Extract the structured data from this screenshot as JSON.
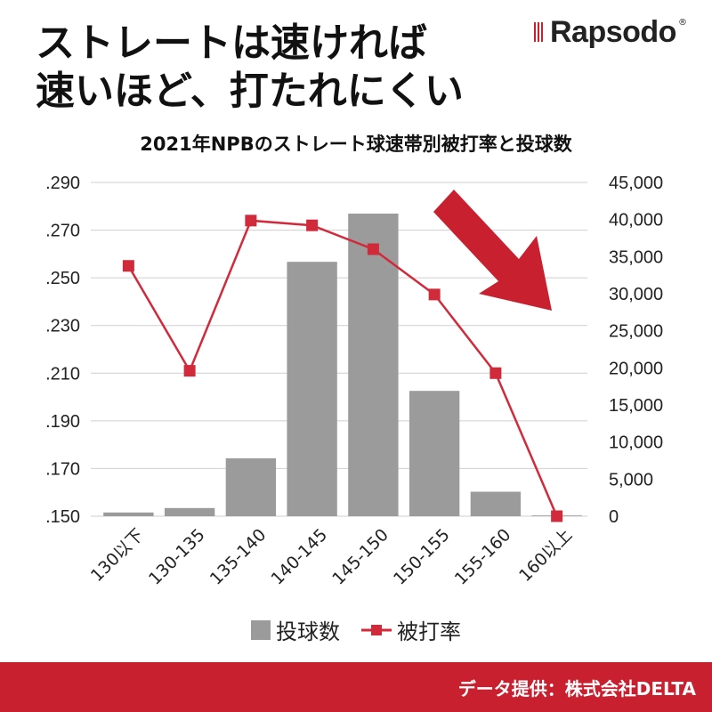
{
  "headline": {
    "line1": "ストレートは速ければ",
    "line2": "速いほど、打たれにくい"
  },
  "logo": {
    "text": "Rapsodo",
    "registered": "®"
  },
  "footer": {
    "credit": "データ提供：株式会社DELTA"
  },
  "colors": {
    "bar": "#9b9b9b",
    "line": "#d12a3a",
    "arrow": "#c8202f",
    "footer": "#c8202f",
    "grid": "#cfcfcf"
  },
  "chart_data": {
    "type": "bar",
    "title": "2021年NPBのストレート球速帯別被打率と投球数",
    "categories": [
      "130以下",
      "130-135",
      "135-140",
      "140-145",
      "145-150",
      "150-155",
      "155-160",
      "160以上"
    ],
    "series": [
      {
        "name": "投球数",
        "type": "bar",
        "axis": "right",
        "values": [
          500,
          1100,
          7800,
          34300,
          40800,
          16900,
          3300,
          100
        ]
      },
      {
        "name": "被打率",
        "type": "line",
        "axis": "left",
        "values": [
          0.255,
          0.211,
          0.274,
          0.272,
          0.262,
          0.243,
          0.21,
          0.15
        ]
      }
    ],
    "y_left": {
      "ylim": [
        0.15,
        0.29
      ],
      "ticks": [
        ".290",
        ".270",
        ".250",
        ".230",
        ".210",
        ".190",
        ".170",
        ".150"
      ],
      "tick_values": [
        0.29,
        0.27,
        0.25,
        0.23,
        0.21,
        0.19,
        0.17,
        0.15
      ]
    },
    "y_right": {
      "ylim": [
        0,
        45000
      ],
      "ticks": [
        "45,000",
        "40,000",
        "35,000",
        "30,000",
        "25,000",
        "20,000",
        "15,000",
        "10,000",
        "5,000",
        "0"
      ],
      "tick_values": [
        45000,
        40000,
        35000,
        30000,
        25000,
        20000,
        15000,
        10000,
        5000,
        0
      ]
    },
    "grid": true,
    "legend": "bottom-center",
    "annotation": "downward-right arrow"
  }
}
